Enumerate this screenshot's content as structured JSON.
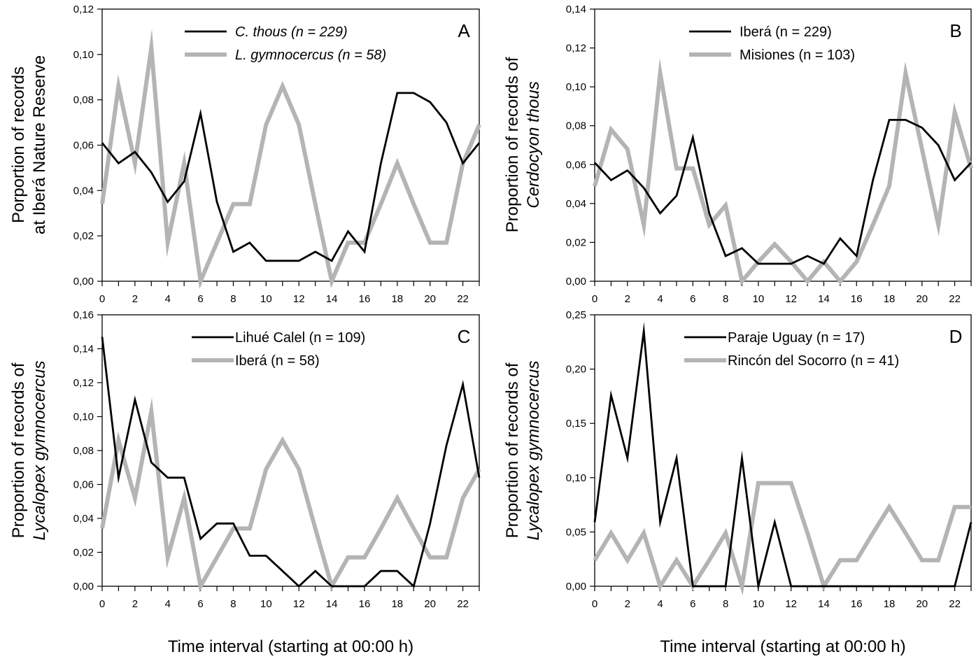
{
  "x_title": "Time interval (starting at 00:00 h)",
  "chart_data": [
    {
      "type": "line",
      "panel_label": "A",
      "ylabel_lines": [
        [
          {
            "t": "Porportion of records",
            "i": false
          }
        ],
        [
          {
            "t": "at Iberá Nature Reserve",
            "i": false
          }
        ]
      ],
      "xlabel": "Time interval (starting at 00:00 h)",
      "xlim": [
        0,
        23
      ],
      "ylim": [
        0,
        0.12
      ],
      "xticks": [
        0,
        2,
        4,
        6,
        8,
        10,
        12,
        14,
        16,
        18,
        20,
        22
      ],
      "yticks": [
        "0,00",
        "0,02",
        "0,04",
        "0,06",
        "0,08",
        "0,10",
        "0,12"
      ],
      "legend_position": "top-center",
      "x": [
        0,
        1,
        2,
        3,
        4,
        5,
        6,
        7,
        8,
        9,
        10,
        11,
        12,
        13,
        14,
        15,
        16,
        17,
        18,
        19,
        20,
        21,
        22,
        23
      ],
      "series": [
        {
          "name": "C. thous (n = 229)",
          "italic_part": "C. thous",
          "color": "#000000",
          "values": [
            0.061,
            0.052,
            0.057,
            0.048,
            0.035,
            0.044,
            0.074,
            0.035,
            0.013,
            0.017,
            0.009,
            0.009,
            0.009,
            0.013,
            0.009,
            0.022,
            0.013,
            0.052,
            0.083,
            0.083,
            0.079,
            0.07,
            0.052,
            0.061
          ]
        },
        {
          "name": "L. gymnocercus (n = 58)",
          "italic_part": "L. gymnocercus",
          "color": "#b4b4b4",
          "values": [
            0.034,
            0.086,
            0.052,
            0.103,
            0.017,
            0.052,
            0.0,
            0.017,
            0.034,
            0.034,
            0.069,
            0.086,
            0.069,
            0.034,
            0.0,
            0.017,
            0.017,
            0.034,
            0.052,
            0.034,
            0.017,
            0.017,
            0.052,
            0.069
          ]
        }
      ]
    },
    {
      "type": "line",
      "panel_label": "B",
      "ylabel_lines": [
        [
          {
            "t": "Proportion of records of",
            "i": false
          }
        ],
        [
          {
            "t": "Cerdocyon thous",
            "i": true
          }
        ]
      ],
      "xlabel": "Time interval (starting at 00:00 h)",
      "xlim": [
        0,
        23
      ],
      "ylim": [
        0,
        0.14
      ],
      "xticks": [
        0,
        2,
        4,
        6,
        8,
        10,
        12,
        14,
        16,
        18,
        20,
        22
      ],
      "yticks": [
        "0,00",
        "0,02",
        "0,04",
        "0,06",
        "0,08",
        "0,10",
        "0,12",
        "0,14"
      ],
      "legend_position": "top-center",
      "x": [
        0,
        1,
        2,
        3,
        4,
        5,
        6,
        7,
        8,
        9,
        10,
        11,
        12,
        13,
        14,
        15,
        16,
        17,
        18,
        19,
        20,
        21,
        22,
        23
      ],
      "series": [
        {
          "name": "Iberá (n = 229)",
          "italic_part": "",
          "color": "#000000",
          "values": [
            0.061,
            0.052,
            0.057,
            0.048,
            0.035,
            0.044,
            0.074,
            0.035,
            0.013,
            0.017,
            0.009,
            0.009,
            0.009,
            0.013,
            0.009,
            0.022,
            0.013,
            0.052,
            0.083,
            0.083,
            0.079,
            0.07,
            0.052,
            0.061
          ]
        },
        {
          "name": "Misiones (n = 103)",
          "italic_part": "",
          "color": "#b4b4b4",
          "values": [
            0.049,
            0.078,
            0.068,
            0.029,
            0.107,
            0.058,
            0.058,
            0.029,
            0.039,
            0.0,
            0.01,
            0.019,
            0.01,
            0.0,
            0.01,
            0.0,
            0.01,
            0.029,
            0.049,
            0.107,
            0.068,
            0.029,
            0.087,
            0.058
          ]
        }
      ]
    },
    {
      "type": "line",
      "panel_label": "C",
      "ylabel_lines": [
        [
          {
            "t": "Proportion of records of",
            "i": false
          }
        ],
        [
          {
            "t": "Lycalopex gymnocercus",
            "i": true
          }
        ]
      ],
      "xlabel": "Time interval (starting at 00:00 h)",
      "xlim": [
        0,
        23
      ],
      "ylim": [
        0,
        0.16
      ],
      "xticks": [
        0,
        2,
        4,
        6,
        8,
        10,
        12,
        14,
        16,
        18,
        20,
        22
      ],
      "yticks": [
        "0,00",
        "0,02",
        "0,04",
        "0,06",
        "0,08",
        "0,10",
        "0,12",
        "0,14",
        "0,16"
      ],
      "legend_position": "top-center",
      "x": [
        0,
        1,
        2,
        3,
        4,
        5,
        6,
        7,
        8,
        9,
        10,
        11,
        12,
        13,
        14,
        15,
        16,
        17,
        18,
        19,
        20,
        21,
        22,
        23
      ],
      "series": [
        {
          "name": "Lihué Calel (n = 109)",
          "italic_part": "",
          "color": "#000000",
          "values": [
            0.147,
            0.064,
            0.11,
            0.073,
            0.064,
            0.064,
            0.028,
            0.037,
            0.037,
            0.018,
            0.018,
            0.009,
            0.0,
            0.009,
            0.0,
            0.0,
            0.0,
            0.009,
            0.009,
            0.0,
            0.037,
            0.083,
            0.119,
            0.064
          ]
        },
        {
          "name": "Iberá (n = 58)",
          "italic_part": "",
          "color": "#b4b4b4",
          "values": [
            0.034,
            0.086,
            0.052,
            0.103,
            0.017,
            0.052,
            0.0,
            0.017,
            0.034,
            0.034,
            0.069,
            0.086,
            0.069,
            0.034,
            0.0,
            0.017,
            0.017,
            0.034,
            0.052,
            0.034,
            0.017,
            0.017,
            0.052,
            0.069
          ]
        }
      ]
    },
    {
      "type": "line",
      "panel_label": "D",
      "ylabel_lines": [
        [
          {
            "t": "Proportion of records of",
            "i": false
          }
        ],
        [
          {
            "t": "Lycalopex gymnocercus",
            "i": true
          }
        ]
      ],
      "xlabel": "Time interval (starting at 00:00 h)",
      "xlim": [
        0,
        23
      ],
      "ylim": [
        0,
        0.25
      ],
      "xticks": [
        0,
        2,
        4,
        6,
        8,
        10,
        12,
        14,
        16,
        18,
        20,
        22
      ],
      "yticks": [
        "0,00",
        "0,05",
        "0,10",
        "0,15",
        "0,20",
        "0,25"
      ],
      "legend_position": "top-center",
      "x": [
        0,
        1,
        2,
        3,
        4,
        5,
        6,
        7,
        8,
        9,
        10,
        11,
        12,
        13,
        14,
        15,
        16,
        17,
        18,
        19,
        20,
        21,
        22,
        23
      ],
      "series": [
        {
          "name": "Paraje Uguay (n = 17)",
          "italic_part": "",
          "color": "#000000",
          "values": [
            0.059,
            0.176,
            0.118,
            0.235,
            0.059,
            0.118,
            0.0,
            0.0,
            0.0,
            0.118,
            0.0,
            0.059,
            0.0,
            0.0,
            0.0,
            0.0,
            0.0,
            0.0,
            0.0,
            0.0,
            0.0,
            0.0,
            0.0,
            0.059
          ]
        },
        {
          "name": "Rincón del Socorro (n = 41)",
          "italic_part": "",
          "color": "#b4b4b4",
          "values": [
            0.024,
            0.049,
            0.024,
            0.049,
            0.0,
            0.024,
            0.0,
            0.024,
            0.049,
            0.0,
            0.095,
            0.095,
            0.095,
            0.049,
            0.0,
            0.024,
            0.024,
            0.049,
            0.073,
            0.049,
            0.024,
            0.024,
            0.073,
            0.073
          ]
        }
      ]
    }
  ]
}
